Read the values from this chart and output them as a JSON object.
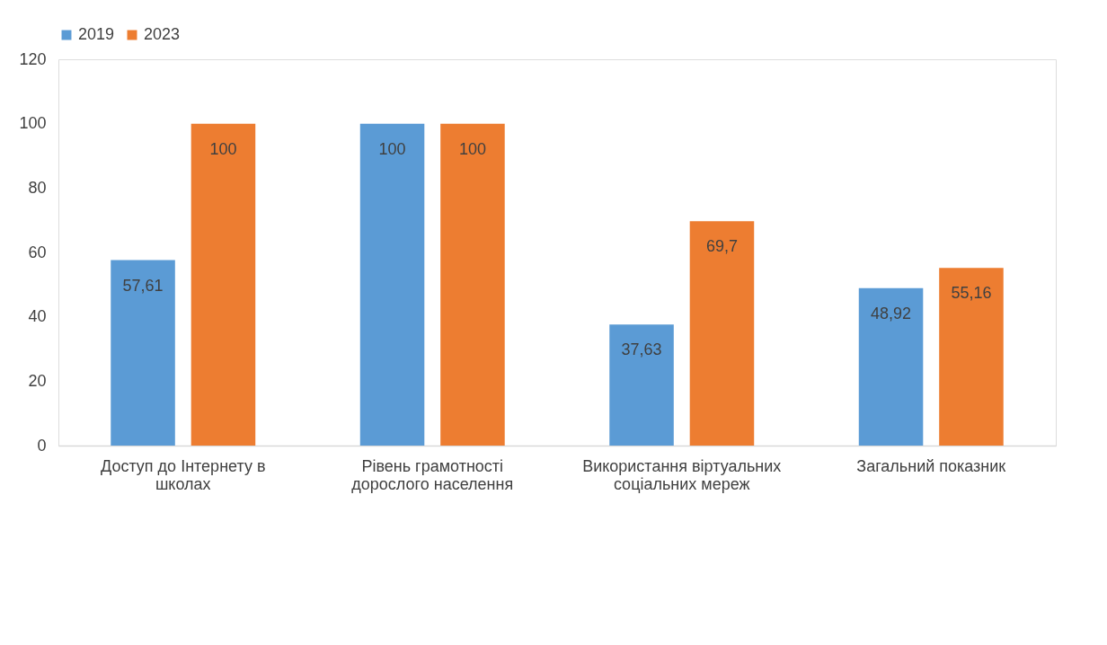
{
  "chart_data": {
    "type": "bar",
    "categories": [
      "Доступ до Інтернету в школах",
      "Рівень грамотності дорослого населення",
      "Використання віртуальних соціальних мереж",
      "Загальний показник"
    ],
    "series": [
      {
        "name": "2019",
        "color": "#5b9bd5",
        "values": [
          57.61,
          100,
          37.63,
          48.92
        ],
        "value_labels": [
          "57,61",
          "100",
          "37,63",
          "48,92"
        ]
      },
      {
        "name": "2023",
        "color": "#ed7d31",
        "values": [
          100,
          100,
          69.7,
          55.16
        ],
        "value_labels": [
          "100",
          "100",
          "69,7",
          "55,16"
        ]
      }
    ],
    "ylim": [
      0,
      120
    ],
    "yticks": [
      0,
      20,
      40,
      60,
      80,
      100,
      120
    ],
    "grid": false,
    "legend": "top"
  }
}
